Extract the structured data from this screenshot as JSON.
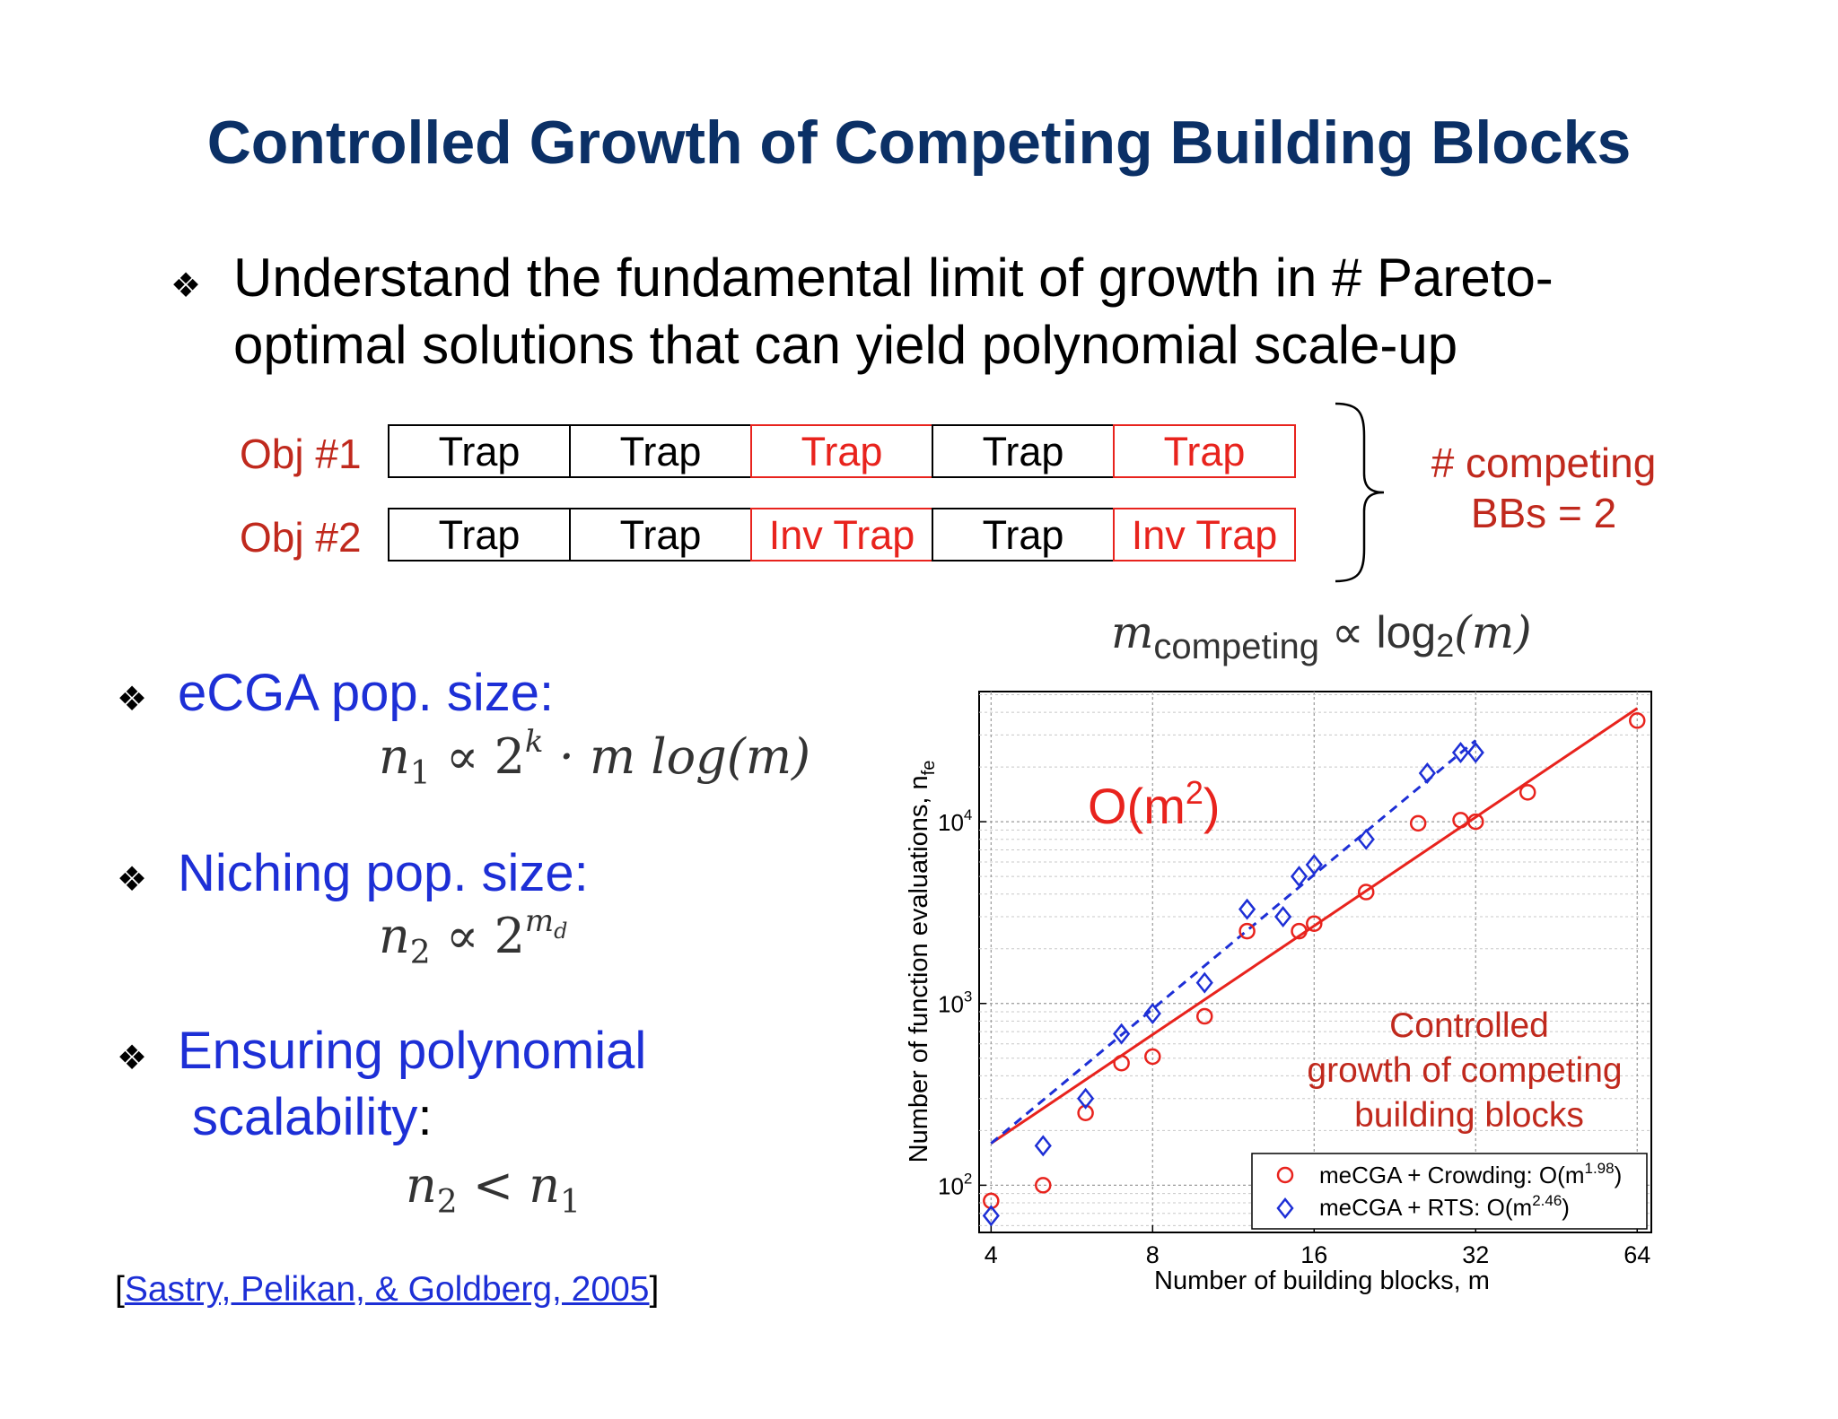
{
  "slide": {
    "title": "Controlled Growth of Competing Building Blocks",
    "bullet_symbol": "❖",
    "main_bullet_line1": "Understand the fundamental limit of growth in # Pareto-",
    "main_bullet_line2": "optimal solutions that can yield polynomial scale-up"
  },
  "objectives": {
    "rows": [
      {
        "label": "Obj #1",
        "cells": [
          {
            "text": "Trap",
            "highlight": false
          },
          {
            "text": "Trap",
            "highlight": false
          },
          {
            "text": "Trap",
            "highlight": true
          },
          {
            "text": "Trap",
            "highlight": false
          },
          {
            "text": "Trap",
            "highlight": true
          }
        ]
      },
      {
        "label": "Obj #2",
        "cells": [
          {
            "text": "Trap",
            "highlight": false
          },
          {
            "text": "Trap",
            "highlight": false
          },
          {
            "text": "Inv Trap",
            "highlight": true
          },
          {
            "text": "Trap",
            "highlight": false
          },
          {
            "text": "Inv Trap",
            "highlight": true
          }
        ]
      }
    ],
    "note_line1": "# competing",
    "note_line2": "BBs = 2"
  },
  "formulas": {
    "m_competing_var": "m",
    "m_competing_sub": "competing",
    "m_competing_rest": "∝ log",
    "m_competing_base": "2",
    "m_competing_arg": "(m)",
    "ecga_label": "eCGA pop. size:",
    "ecga_formula_a": "n",
    "ecga_formula_sub": "1",
    "ecga_formula_b": " ∝ 2",
    "ecga_formula_sup": "k",
    "ecga_formula_c": " · m log(m)",
    "niching_label": "Niching pop. size:",
    "niching_formula_a": "n",
    "niching_formula_sub": "2",
    "niching_formula_b": " ∝ 2",
    "niching_formula_sup": "m",
    "niching_formula_supsub": "d",
    "scal_label_line1": "Ensuring polynomial",
    "scal_label_line2": "scalability",
    "scal_colon": ":",
    "scal_formula_a": "n",
    "scal_formula_sub1": "2",
    "scal_formula_b": " < n",
    "scal_formula_sub2": "1"
  },
  "citation": {
    "open": "[",
    "link": "Sastry, Pelikan, & Goldberg, 2005",
    "close": "]"
  },
  "colors": {
    "title": "#0b3066",
    "red": "#e8231d",
    "blue": "#1d2fd6",
    "label_red": "#c0291d"
  },
  "chart_data": {
    "type": "scatter",
    "xlabel": "Number of building blocks, m",
    "ylabel": "Number of function evaluations, n",
    "ylabel_sub": "fe",
    "x_scale": "log2",
    "y_scale": "log10",
    "xlim": [
      3.8,
      68
    ],
    "ylim": [
      55,
      52000
    ],
    "xticks": [
      4,
      8,
      16,
      32,
      64
    ],
    "yticks": [
      {
        "value": 100,
        "base": "10",
        "exp": "2"
      },
      {
        "value": 1000,
        "base": "10",
        "exp": "3"
      },
      {
        "value": 10000,
        "base": "10",
        "exp": "4"
      }
    ],
    "grid": true,
    "annotation_big": "O(m",
    "annotation_big_sup": "2",
    "annotation_big_close": ")",
    "annotation_line1": "Controlled",
    "annotation_line2": "growth of competing",
    "annotation_line3": "building blocks",
    "legend_position": "bottom-right",
    "series": [
      {
        "name": "meCGA + Crowding: O(m",
        "name_sup": "1.98",
        "name_close": ")",
        "marker": "circle",
        "color": "#e8231d",
        "fit_style": "solid",
        "x": [
          4,
          5,
          6,
          7,
          8,
          10,
          12,
          15,
          16,
          20,
          25,
          30,
          32,
          40,
          64
        ],
        "y": [
          82,
          100,
          250,
          470,
          510,
          850,
          2500,
          2500,
          2750,
          4100,
          9800,
          10200,
          10000,
          14500,
          36000
        ],
        "fit_x": [
          4,
          64
        ],
        "fit_y": [
          170,
          42000
        ]
      },
      {
        "name": "meCGA + RTS: O(m",
        "name_sup": "2.46",
        "name_close": ")",
        "marker": "diamond",
        "color": "#1d2fd6",
        "fit_style": "dashed",
        "x": [
          4,
          5,
          6,
          7,
          8,
          10,
          12,
          14,
          15,
          16,
          20,
          26,
          30,
          32
        ],
        "y": [
          68,
          165,
          300,
          680,
          880,
          1300,
          3300,
          3000,
          5000,
          5800,
          8000,
          18500,
          24000,
          24000
        ],
        "fit_x": [
          4,
          32
        ],
        "fit_y": [
          170,
          28000
        ]
      }
    ]
  }
}
